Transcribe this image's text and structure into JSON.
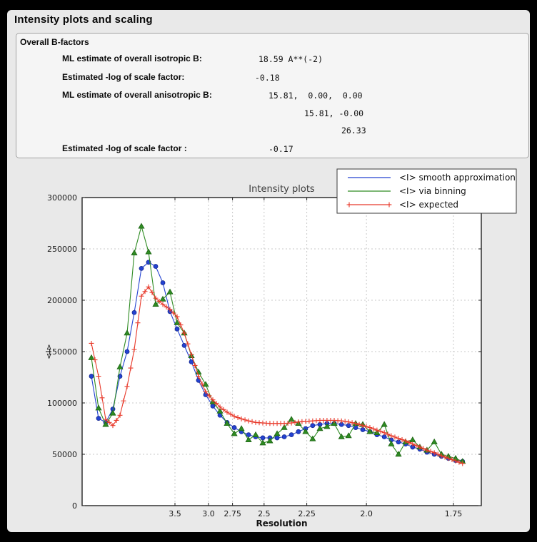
{
  "window": {
    "title": "Intensity plots and scaling"
  },
  "section": {
    "heading": "Overall B-factors",
    "rows": [
      {
        "label": "ML estimate of overall isotropic B:",
        "value": "18.59 A**(-2)"
      },
      {
        "label": "Estimated -log of scale factor:",
        "value": "-0.18"
      },
      {
        "label": "ML estimate of overall anisotropic B:",
        "value": "15.81,  0.00,  0.00"
      },
      {
        "label": "",
        "value": "15.81, -0.00"
      },
      {
        "label": "",
        "value": "26.33"
      },
      {
        "label": "Estimated -log of scale factor :",
        "value": "-0.17"
      }
    ]
  },
  "chart_data": {
    "type": "line",
    "title": "Intensity plots",
    "xlabel": "Resolution",
    "ylabel": "<I>",
    "grid": true,
    "legend_position": "top-right-overlapping-axes",
    "x_axis": {
      "meaning": "resolution d-spacing in Angstrom, axis linear in 1/d^2",
      "tick_labels": [
        "3.5",
        "3.0",
        "2.75",
        "2.5",
        "2.25",
        "2.0",
        "1.75"
      ],
      "tick_d_values": [
        3.5,
        3.0,
        2.75,
        2.5,
        2.25,
        2.0,
        1.75
      ],
      "s2_range": [
        0,
        0.351
      ]
    },
    "y_axis": {
      "tick_labels": [
        "0",
        "50000",
        "100000",
        "150000",
        "200000",
        "250000",
        "300000"
      ],
      "tick_values": [
        0,
        50000,
        100000,
        150000,
        200000,
        250000,
        300000
      ],
      "range": [
        0,
        300000
      ]
    },
    "resolution_d": [
      11.07,
      8.32,
      6.947,
      6.086,
      5.482,
      5.028,
      4.671,
      4.38,
      4.138,
      3.932,
      3.754,
      3.598,
      3.46,
      3.337,
      3.226,
      3.126,
      3.034,
      2.95,
      2.872,
      2.801,
      2.734,
      2.672,
      2.614,
      2.56,
      2.509,
      2.461,
      2.415,
      2.372,
      2.331,
      2.293,
      2.256,
      2.221,
      2.187,
      2.155,
      2.124,
      2.094,
      2.066,
      2.039,
      2.013,
      1.988,
      1.964,
      1.94,
      1.918,
      1.896,
      1.875,
      1.855,
      1.835,
      1.816,
      1.797,
      1.779,
      1.762,
      1.745,
      1.729
    ],
    "series": [
      {
        "name": "<I> smooth approximation",
        "color": "#2342d1",
        "edge_color": "#16288f",
        "marker": "circle",
        "values": [
          126000,
          85000,
          81000,
          94000,
          126000,
          150000,
          188000,
          231000,
          237000,
          233000,
          217000,
          189000,
          172000,
          156000,
          140000,
          122000,
          108000,
          97000,
          88000,
          81000,
          76000,
          72000,
          69000,
          67000,
          66000,
          66000,
          66000,
          67000,
          69000,
          72000,
          75000,
          78000,
          79000,
          80000,
          80000,
          79000,
          78000,
          76000,
          74000,
          72000,
          69000,
          67000,
          64000,
          62000,
          60000,
          57000,
          55000,
          52000,
          50000,
          48000,
          46000,
          44000,
          43000
        ]
      },
      {
        "name": "<I> via binning",
        "color": "#2e8b22",
        "edge_color": "#1d6414",
        "marker": "triangle",
        "values": [
          144000,
          95000,
          79000,
          90000,
          135000,
          168000,
          246000,
          272000,
          247000,
          196000,
          201000,
          208000,
          178000,
          168000,
          146000,
          130000,
          118000,
          101000,
          92000,
          80000,
          70000,
          75000,
          64000,
          69000,
          61000,
          63000,
          70000,
          76000,
          84000,
          80000,
          72000,
          65000,
          75000,
          77000,
          80000,
          67000,
          68000,
          80000,
          79000,
          72000,
          71000,
          79000,
          60000,
          50000,
          62000,
          64000,
          57000,
          54000,
          62000,
          50000,
          48000,
          46000,
          43000
        ]
      },
      {
        "name": "<I> expected",
        "color": "#e8392a",
        "edge_color": "#e8392a",
        "marker": "plus",
        "values": [
          158000,
          126000,
          84000,
          78000,
          88000,
          116000,
          152000,
          204000,
          213000,
          202000,
          196000,
          191000,
          184000,
          168000,
          147000,
          126000,
          111000,
          103000,
          96000,
          91000,
          87000,
          84500,
          82500,
          81000,
          80500,
          80000,
          80000,
          80000,
          80500,
          81500,
          82000,
          82500,
          83000,
          83000,
          83000,
          82500,
          81500,
          80000,
          78000,
          76000,
          73500,
          71000,
          68000,
          65500,
          63000,
          60000,
          57000,
          54000,
          51500,
          48500,
          46000,
          43500,
          41000
        ]
      }
    ]
  },
  "colors": {
    "page_background": "#000000",
    "panel_background": "#e9e9e9",
    "textbox_background": "#f5f5f5",
    "plot_background": "#ffffff",
    "gridline": "#c9c9c9",
    "axis_frame": "#000000",
    "chart_title_text": "#3c3c3c"
  }
}
